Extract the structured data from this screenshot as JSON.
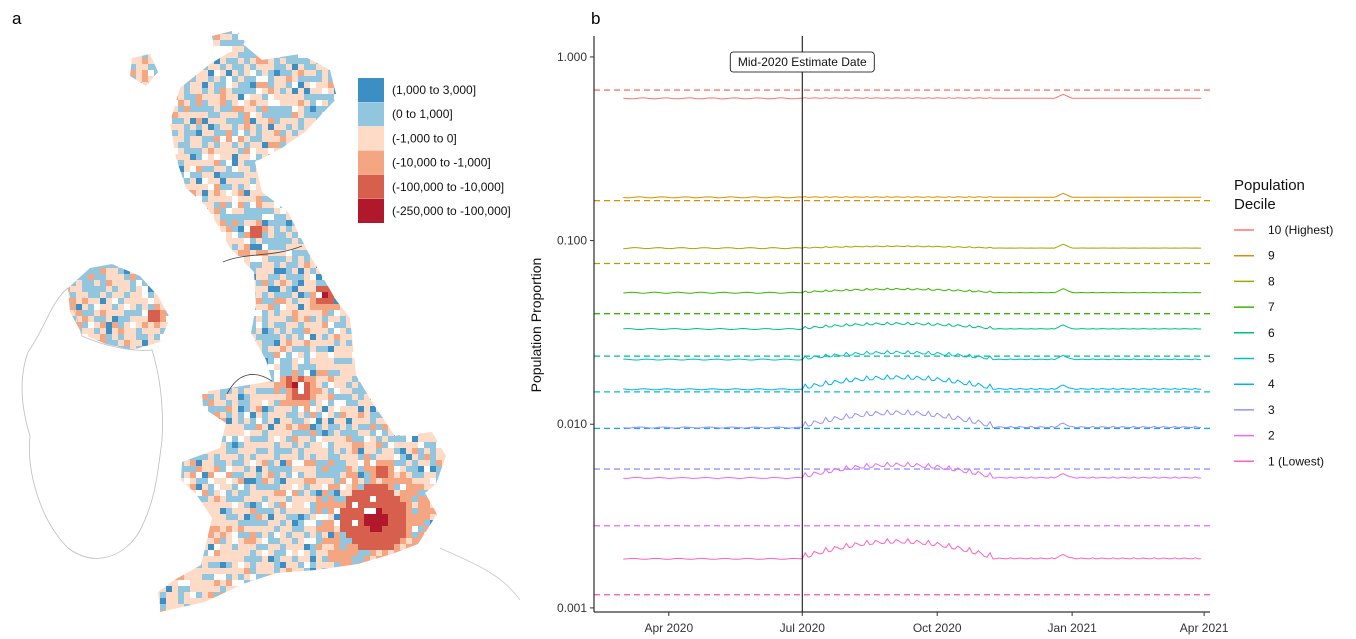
{
  "panels": {
    "a": "a",
    "b": "b"
  },
  "map_legend": {
    "items": [
      {
        "label": "(1,000 to 3,000]",
        "color": "#3b8fc2"
      },
      {
        "label": "(0 to 1,000]",
        "color": "#92c5de"
      },
      {
        "label": "(-1,000 to 0]",
        "color": "#fddbc7"
      },
      {
        "label": "(-10,000 to -1,000]",
        "color": "#f4a582"
      },
      {
        "label": "(-100,000 to -10,000]",
        "color": "#d6604d"
      },
      {
        "label": "(-250,000 to -100,000]",
        "color": "#b2182b"
      }
    ]
  },
  "chart_data": {
    "type": "line",
    "ylabel": "Population Proportion",
    "xlabel": "",
    "y_scale": "log",
    "ylim": [
      0.00095,
      1.3
    ],
    "x_range": [
      "2020-02-10",
      "2021-04-05"
    ],
    "y_ticks": [
      {
        "v": 1.0,
        "label": "1.000"
      },
      {
        "v": 0.1,
        "label": "0.100"
      },
      {
        "v": 0.01,
        "label": "0.010"
      },
      {
        "v": 0.001,
        "label": "0.001"
      }
    ],
    "x_ticks": [
      {
        "date": "2020-04-01",
        "label": "Apr 2020"
      },
      {
        "date": "2020-07-01",
        "label": "Jul 2020"
      },
      {
        "date": "2020-10-01",
        "label": "Oct 2020"
      },
      {
        "date": "2021-01-01",
        "label": "Jan 2021"
      },
      {
        "date": "2021-04-01",
        "label": "Apr 2021"
      }
    ],
    "vline": {
      "date": "2020-07-01",
      "label": "Mid-2020 Estimate Date"
    },
    "start_date": "2020-03-01",
    "end_date": "2021-03-31",
    "legend_title": [
      "Population",
      "Decile"
    ],
    "legend_position": "right",
    "grid": false,
    "series": [
      {
        "name": "10 (Highest)",
        "color": "#f8766d",
        "reference": 0.66,
        "base": 0.595,
        "summer_bump": 0.0,
        "wiggle": 0.01
      },
      {
        "name": "9",
        "color": "#d89000",
        "reference": 0.165,
        "base": 0.172,
        "summer_bump": 0.0,
        "wiggle": 0.01
      },
      {
        "name": "8",
        "color": "#a3a500",
        "reference": 0.075,
        "base": 0.091,
        "summer_bump": 0.02,
        "wiggle": 0.01
      },
      {
        "name": "7",
        "color": "#39b600",
        "reference": 0.04,
        "base": 0.052,
        "summer_bump": 0.04,
        "wiggle": 0.02
      },
      {
        "name": "6",
        "color": "#00bf7d",
        "reference": 0.0235,
        "base": 0.033,
        "summer_bump": 0.06,
        "wiggle": 0.03
      },
      {
        "name": "5",
        "color": "#00bfc4",
        "reference": 0.015,
        "base": 0.0225,
        "summer_bump": 0.08,
        "wiggle": 0.04
      },
      {
        "name": "4",
        "color": "#00b0f6",
        "reference": 0.0095,
        "base": 0.0155,
        "summer_bump": 0.14,
        "wiggle": 0.06
      },
      {
        "name": "3",
        "color": "#9590ff",
        "reference": 0.0057,
        "base": 0.0096,
        "summer_bump": 0.18,
        "wiggle": 0.07
      },
      {
        "name": "2",
        "color": "#e76bf3",
        "reference": 0.0028,
        "base": 0.0051,
        "summer_bump": 0.16,
        "wiggle": 0.06
      },
      {
        "name": "1 (Lowest)",
        "color": "#ff62bc",
        "reference": 0.00118,
        "base": 0.00185,
        "summer_bump": 0.22,
        "wiggle": 0.07
      }
    ]
  }
}
